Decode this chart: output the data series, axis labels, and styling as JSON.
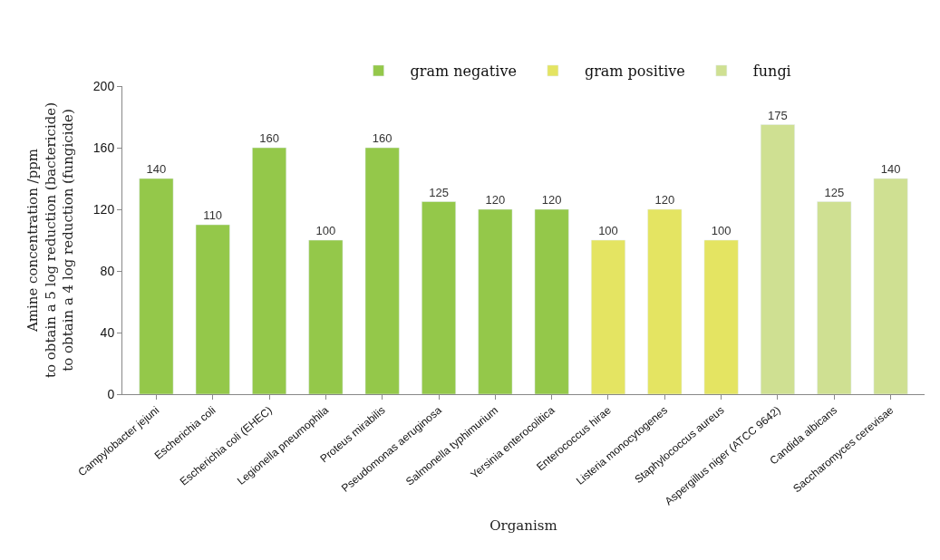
{
  "chart_data": {
    "type": "bar",
    "xlabel": "Organism",
    "ylabel": "Amine concentration /ppm\nto obtain a 5 log reduction (bactericide)\nto obtain a 4 log reduction (fungicide)",
    "categories": [
      "Campylobacter jejuni",
      "Escherichia coli",
      "Escherichia coli (EHEC)",
      "Legionella pneumophila",
      "Proteus mirabilis",
      "Pseudomonas aeruginosa",
      "Salmonella typhimurium",
      "Yersinia enterocolitica",
      "Enterococcus hirae",
      "Listeria monocytogenes",
      "Staphylococcus aureus",
      "Aspergillus niger (ATCC 9642)",
      "Candida albicans",
      "Saccharomyces cerevisae"
    ],
    "series": [
      {
        "name": "gram negative",
        "color": "#94c84a",
        "values": [
          140,
          110,
          160,
          100,
          160,
          125,
          120,
          120,
          null,
          null,
          null,
          null,
          null,
          null
        ]
      },
      {
        "name": "gram positive",
        "color": "#e4e462",
        "values": [
          null,
          null,
          null,
          null,
          null,
          null,
          null,
          null,
          100,
          120,
          100,
          null,
          null,
          null
        ]
      },
      {
        "name": "fungi",
        "color": "#cfe092",
        "values": [
          null,
          null,
          null,
          null,
          null,
          null,
          null,
          null,
          null,
          null,
          null,
          175,
          125,
          140
        ]
      }
    ],
    "ylim": [
      0,
      200
    ],
    "yticks": [
      0,
      40,
      80,
      120,
      160,
      200
    ],
    "data_labels": true,
    "legend": "top"
  }
}
